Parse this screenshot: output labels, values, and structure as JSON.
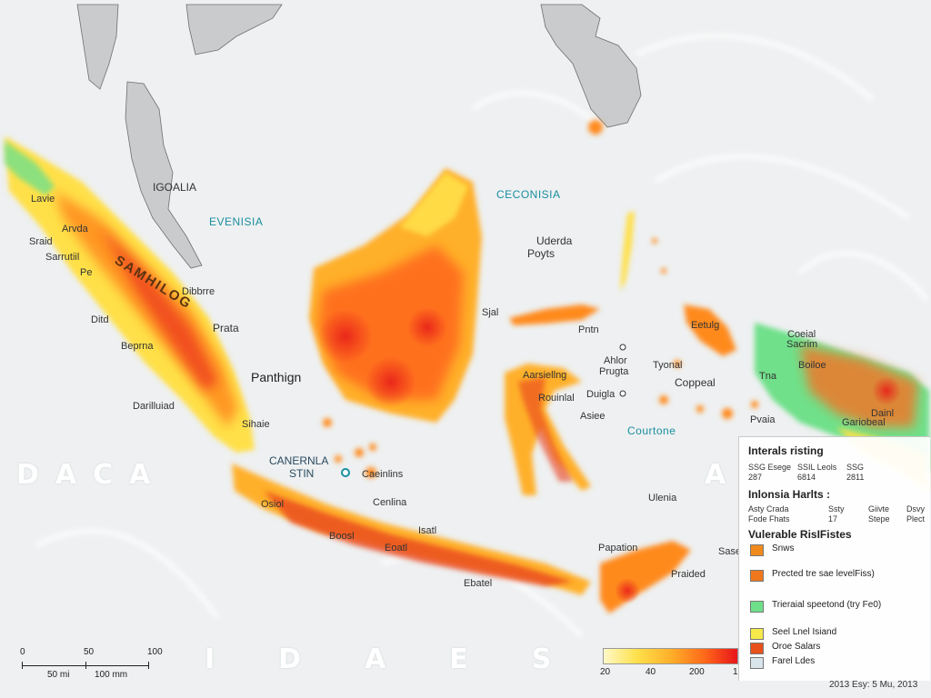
{
  "labels": {
    "igoalia": "IGOALIA",
    "evenisia": "EVENISIA",
    "ceconisia": "CECONISIA",
    "uderda": "Uderda",
    "poyts": "Poyts",
    "samhilog": "SAMHILOG",
    "lavie": "Lavie",
    "arvda": "Arvda",
    "sraid": "Sraid",
    "sarrutiil": "Sarrutiil",
    "pe": "Pe",
    "dibbrre": "Dibbrre",
    "ditd": "Ditd",
    "prata": "Prata",
    "beprna": "Beprna",
    "panthign": "Panthign",
    "dariluiad": "Darilluiad",
    "sihaie": "Sihaie",
    "canernla": "CANERNLA",
    "stin": "STIN",
    "caeinlins": "Caeinlins",
    "cenlina": "Cenlina",
    "sjal": "Sjal",
    "pntn": "Pntn",
    "aarsielling": "Aarsiellng",
    "duigla": "Duigla",
    "ahlor": "Ahlor",
    "prugta": "Prugta",
    "tyonal": "Tyonal",
    "coppeal": "Coppeal",
    "asiee": "Asiee",
    "courtone": "Courtone",
    "pvaia": "Pvaia",
    "rouinlal": "Rouinlal",
    "osiol": "Osiol",
    "boosl": "Boosl",
    "isatl": "Isatl",
    "eoatl": "Eoatl",
    "ebatel": "Ebatel",
    "papation": "Papation",
    "praided": "Praided",
    "sase": "Sase",
    "ulenia": "Ulenia",
    "coeial": "Coeial",
    "sacrim": "Sacrim",
    "tna": "Tna",
    "boiloe": "Boiloe",
    "dainl": "Dainl",
    "gariobeal": "Gariobeal",
    "eetulg": "Eetulg"
  },
  "watermarks": {
    "left": "DACA",
    "bottom": "IDAES",
    "right": "A"
  },
  "legend": {
    "title1": "Interals risting",
    "col_headers": [
      "SSG Esege",
      "SSIL Leols",
      "SSG"
    ],
    "col_values": [
      "287",
      "6814",
      "2811"
    ],
    "title2": "Inlonsia Harlts :",
    "row1": [
      "Asty Crada",
      "Ssty",
      "Giivte",
      "Dsvy"
    ],
    "row2": [
      "Fode Fhats",
      "17",
      "Stepe",
      "Plect"
    ],
    "title3": "Vulerable RisIFistes",
    "items": [
      {
        "label": "Snws",
        "color": "#f08a1c"
      },
      {
        "label": "Prected tre sae levelFiss)",
        "color": "#f0781c"
      },
      {
        "label": "Trieraial speetond (try Fe0)",
        "color": "#6fe08a"
      },
      {
        "label": "Seel Lnel Isiand",
        "color": "#f5ea4a"
      },
      {
        "label": "Oroe Salars",
        "color": "#e8501c"
      },
      {
        "label": "Farel Ldes",
        "color": "#d8e6ec"
      }
    ]
  },
  "scale": {
    "ticks": [
      "0",
      "50",
      "100"
    ],
    "labels": [
      "50 mi",
      "100 mm"
    ]
  },
  "ramp": {
    "ticks": [
      "20",
      "40",
      "200",
      "1"
    ]
  },
  "credit": "2013 Esy: 5 Mu, 2013",
  "colors": {
    "sea": "#eef0f1",
    "land_gray": "#c9cbcc",
    "hazard_yellow": "#ffe04a",
    "hazard_orange": "#ff8a1a",
    "hazard_red": "#e8201a",
    "green": "#6fe08a"
  }
}
